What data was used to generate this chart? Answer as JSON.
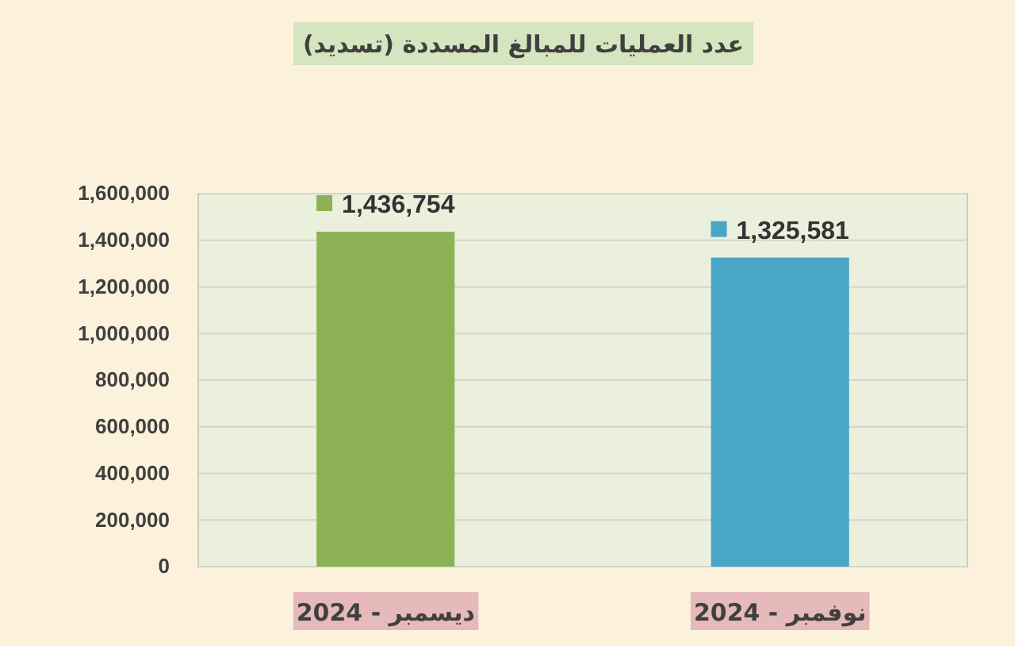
{
  "chart_data": {
    "type": "bar",
    "title": "عدد العمليات للمبالغ المسددة (تسديد)",
    "categories": [
      "ديسمبر - 2024",
      "نوفمبر - 2024"
    ],
    "values": [
      1436754,
      1325581
    ],
    "value_labels": [
      "1,436,754",
      "1,325,581"
    ],
    "colors": [
      "#8db255",
      "#4aa6c6"
    ],
    "ylim": [
      0,
      1600000
    ],
    "yticks": [
      {
        "value": 0,
        "label": "0"
      },
      {
        "value": 200000,
        "label": "200,000"
      },
      {
        "value": 400000,
        "label": "400,000"
      },
      {
        "value": 600000,
        "label": "600,000"
      },
      {
        "value": 800000,
        "label": "800,000"
      },
      {
        "value": 1000000,
        "label": "1,000,000"
      },
      {
        "value": 1200000,
        "label": "1,200,000"
      },
      {
        "value": 1400000,
        "label": "1,400,000"
      },
      {
        "value": 1600000,
        "label": "1,600,000"
      }
    ],
    "grid": "y"
  }
}
